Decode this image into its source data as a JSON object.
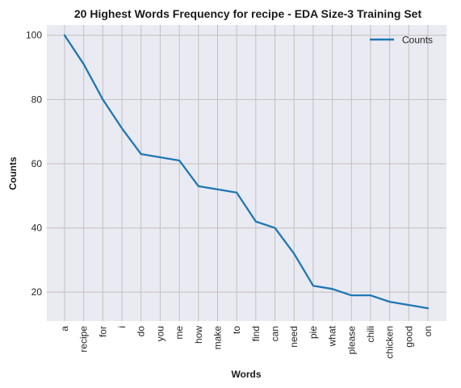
{
  "chart_data": {
    "type": "line",
    "title": "20 Highest Words Frequency for recipe - EDA Size-3 Training Set",
    "xlabel": "Words",
    "ylabel": "Counts",
    "categories": [
      "a",
      "recipe",
      "for",
      "i",
      "do",
      "you",
      "me",
      "how",
      "make",
      "to",
      "find",
      "can",
      "need",
      "pie",
      "what",
      "please",
      "chili",
      "chicken",
      "good",
      "on"
    ],
    "series": [
      {
        "name": "Counts",
        "values": [
          100,
          91,
          80,
          71,
          63,
          62,
          61,
          53,
          52,
          51,
          42,
          40,
          32,
          22,
          21,
          19,
          19,
          17,
          16,
          15
        ]
      }
    ],
    "ylim": [
      11,
      103.2
    ],
    "yticks": [
      20,
      40,
      60,
      80,
      100
    ],
    "grid": true,
    "legend_position": "upper right",
    "colors": {
      "line": "#1f77b4",
      "plot_bg": "#eaeaf2",
      "grid": "#c0c0c0"
    }
  }
}
